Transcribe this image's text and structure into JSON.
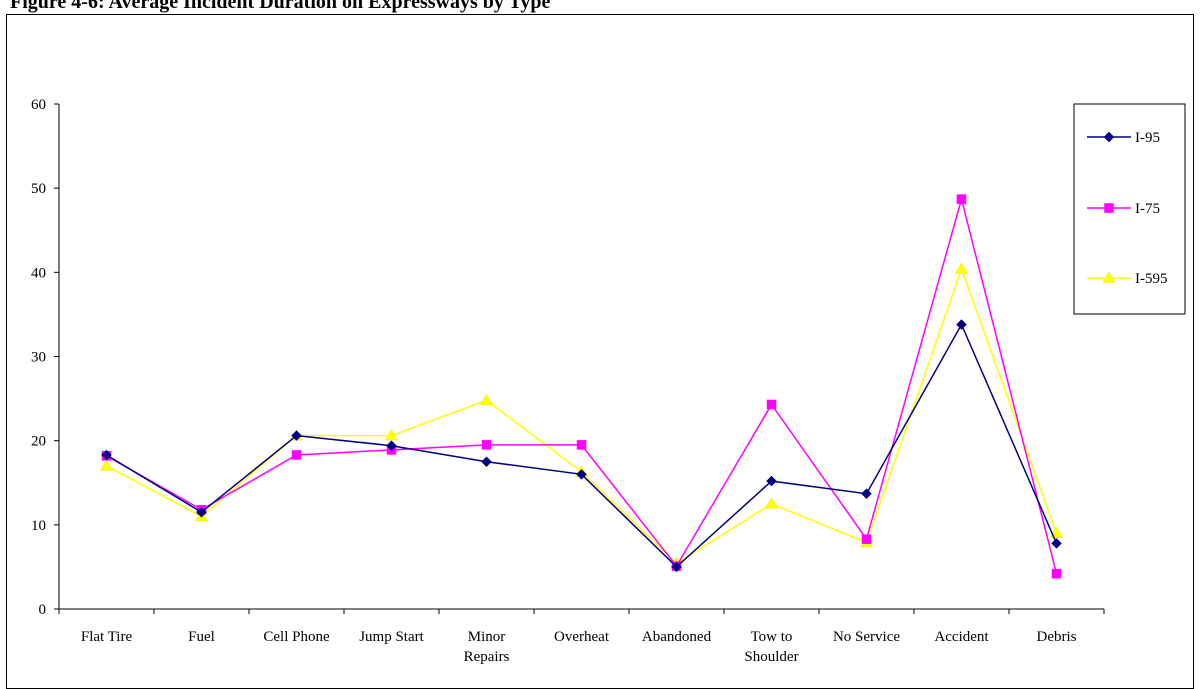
{
  "title": "Figure 4-6: Average Incident Duration on Expressways by Type",
  "chart_data": {
    "type": "line",
    "categories": [
      "Flat Tire",
      "Fuel",
      "Cell Phone",
      "Jump Start",
      "Minor Repairs",
      "Overheat",
      "Abandoned",
      "Tow to Shoulder",
      "No Service",
      "Accident",
      "Debris"
    ],
    "category_label_lines": [
      [
        "Flat Tire"
      ],
      [
        "Fuel"
      ],
      [
        "Cell Phone"
      ],
      [
        "Jump Start"
      ],
      [
        "Minor",
        "Repairs"
      ],
      [
        "Overheat"
      ],
      [
        "Abandoned"
      ],
      [
        "Tow to",
        "Shoulder"
      ],
      [
        "No Service"
      ],
      [
        "Accident"
      ],
      [
        "Debris"
      ]
    ],
    "ylim": [
      0,
      60
    ],
    "yticks": [
      0,
      10,
      20,
      30,
      40,
      50,
      60
    ],
    "grid": false,
    "legend_position": "right",
    "series": [
      {
        "name": "I-95",
        "color": "#000080",
        "marker": "diamond",
        "values": [
          18.3,
          11.5,
          20.6,
          19.4,
          17.5,
          16.0,
          5.0,
          15.2,
          13.7,
          33.8,
          7.8
        ]
      },
      {
        "name": "I-75",
        "color": "#FF00FF",
        "marker": "square",
        "values": [
          18.2,
          11.8,
          18.3,
          18.9,
          19.5,
          19.5,
          5.1,
          24.3,
          8.3,
          48.7,
          4.2
        ]
      },
      {
        "name": "I-595",
        "color": "#FFFF00",
        "marker": "triangle",
        "values": [
          17.0,
          11.0,
          20.6,
          20.6,
          24.8,
          16.3,
          5.4,
          12.5,
          7.9,
          40.4,
          9.0
        ]
      }
    ]
  }
}
